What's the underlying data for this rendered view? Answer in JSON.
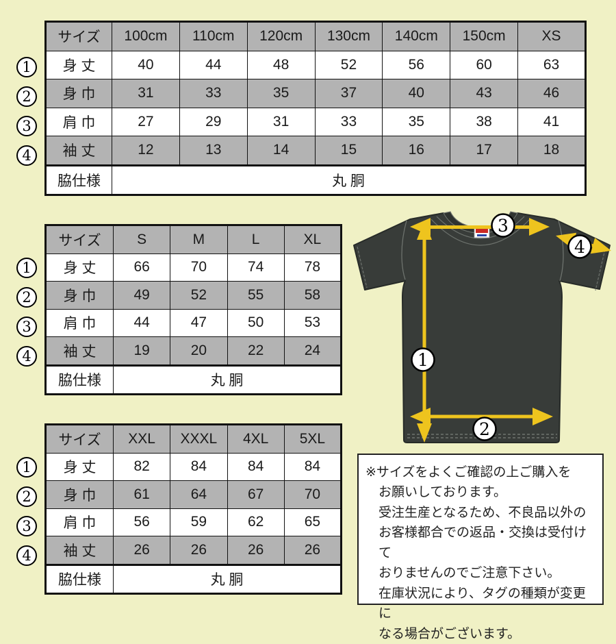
{
  "page": {
    "background": "#f0f1c5"
  },
  "colors": {
    "table_header_gray": "#b3b3b3",
    "table_border": "#111111",
    "shirt_body": "#383c39",
    "shirt_seam": "#6d726d",
    "arrow_yellow": "#eec41e",
    "marker_circle_bg": "#ffffff",
    "tag_red": "#cc2a24",
    "tag_blue": "#2a47a8"
  },
  "row_markers": [
    "1",
    "2",
    "3",
    "4"
  ],
  "tables": [
    {
      "header": [
        "サイズ",
        "100cm",
        "110cm",
        "120cm",
        "130cm",
        "140cm",
        "150cm",
        "XS"
      ],
      "rows": [
        {
          "label": "身 丈",
          "values": [
            "40",
            "44",
            "48",
            "52",
            "56",
            "60",
            "63"
          ]
        },
        {
          "label": "身 巾",
          "values": [
            "31",
            "33",
            "35",
            "37",
            "40",
            "43",
            "46"
          ]
        },
        {
          "label": "肩 巾",
          "values": [
            "27",
            "29",
            "31",
            "33",
            "35",
            "38",
            "41"
          ]
        },
        {
          "label": "袖 丈",
          "values": [
            "12",
            "13",
            "14",
            "15",
            "16",
            "17",
            "18"
          ]
        }
      ],
      "footer": {
        "label": "脇仕様",
        "value": "丸 胴"
      }
    },
    {
      "header": [
        "サイズ",
        "S",
        "M",
        "L",
        "XL"
      ],
      "rows": [
        {
          "label": "身 丈",
          "values": [
            "66",
            "70",
            "74",
            "78"
          ]
        },
        {
          "label": "身 巾",
          "values": [
            "49",
            "52",
            "55",
            "58"
          ]
        },
        {
          "label": "肩 巾",
          "values": [
            "44",
            "47",
            "50",
            "53"
          ]
        },
        {
          "label": "袖 丈",
          "values": [
            "19",
            "20",
            "22",
            "24"
          ]
        }
      ],
      "footer": {
        "label": "脇仕様",
        "value": "丸 胴"
      }
    },
    {
      "header": [
        "サイズ",
        "XXL",
        "XXXL",
        "4XL",
        "5XL"
      ],
      "rows": [
        {
          "label": "身 丈",
          "values": [
            "82",
            "84",
            "84",
            "84"
          ]
        },
        {
          "label": "身 巾",
          "values": [
            "61",
            "64",
            "67",
            "70"
          ]
        },
        {
          "label": "肩 巾",
          "values": [
            "56",
            "59",
            "62",
            "65"
          ]
        },
        {
          "label": "袖 丈",
          "values": [
            "26",
            "26",
            "26",
            "26"
          ]
        }
      ],
      "footer": {
        "label": "脇仕様",
        "value": "丸 胴"
      }
    }
  ],
  "diagram": {
    "markers": [
      "1",
      "2",
      "3",
      "4"
    ]
  },
  "notice": {
    "lines": [
      "※サイズをよくご確認の上ご購入を",
      "お願いしております。",
      "受注生産となるため、不良品以外の",
      "お客様都合での返品・交換は受付けて",
      "おりませんのでご注意下さい。",
      "在庫状況により、タグの種類が変更に",
      "なる場合がございます。"
    ]
  }
}
